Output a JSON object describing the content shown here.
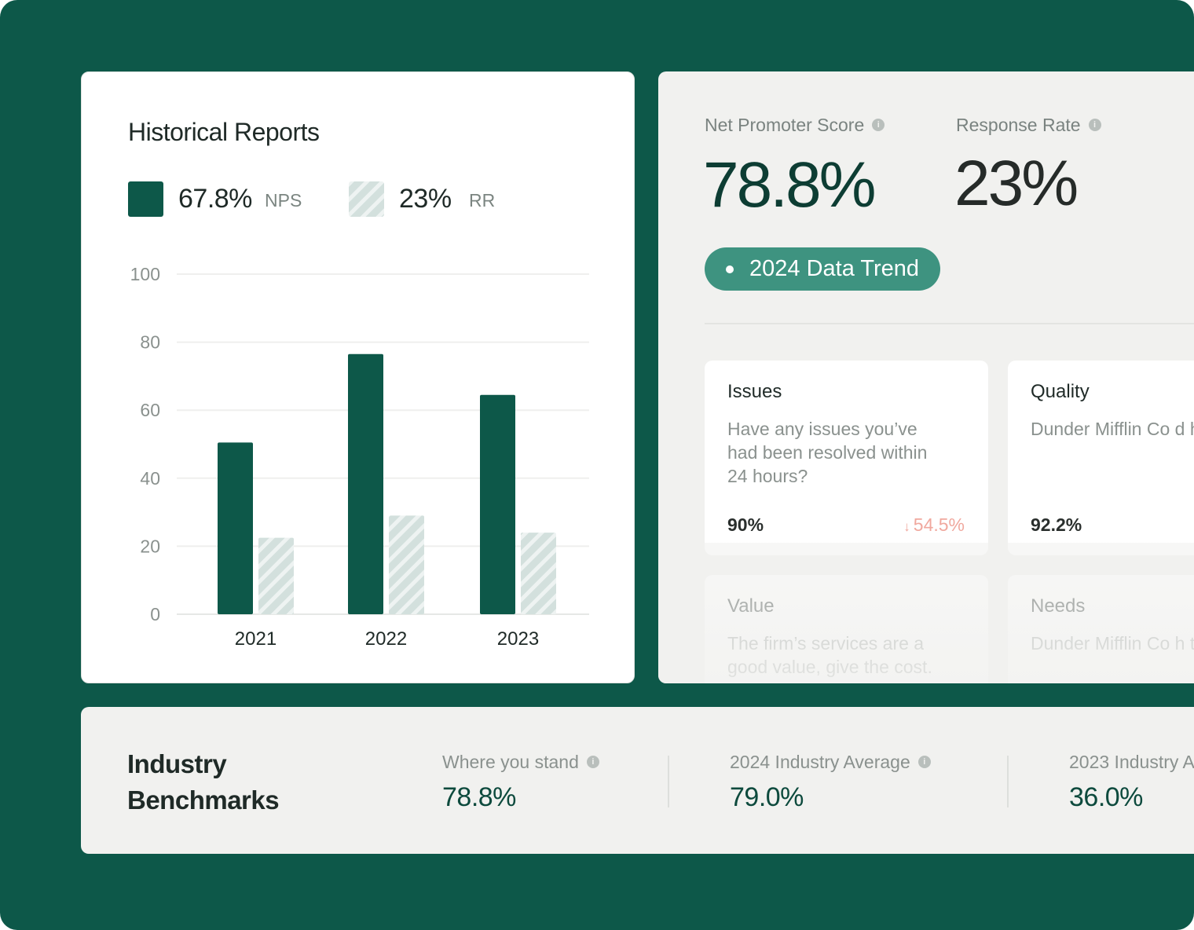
{
  "colors": {
    "brand": "#0d5849",
    "nps_bar": "#0d5849",
    "rr_bar": "#d3e0dd",
    "accent_button": "#3e9380",
    "negative": "#f0a89e"
  },
  "historical": {
    "title": "Historical Reports",
    "legend": [
      {
        "value": "67.8%",
        "label": "NPS"
      },
      {
        "value": "23%",
        "label": "RR"
      }
    ]
  },
  "chart_data": {
    "type": "bar",
    "title": "Historical Reports",
    "categories": [
      "2021",
      "2022",
      "2023"
    ],
    "series": [
      {
        "name": "NPS",
        "values": [
          50.5,
          76.5,
          64.5
        ]
      },
      {
        "name": "RR",
        "values": [
          22.5,
          29,
          24
        ]
      }
    ],
    "ylim": [
      0,
      100
    ],
    "yticks": [
      "0",
      "20",
      "40",
      "60",
      "80",
      "100"
    ],
    "grid": true,
    "legend_position": "top-left"
  },
  "metrics": {
    "nps": {
      "label": "Net Promoter Score",
      "value": "78.8%"
    },
    "rr": {
      "label": "Response Rate",
      "value": "23%"
    },
    "trend_button": "2024 Data Trend",
    "info_icon_glyph": "i"
  },
  "questions": [
    {
      "title": "Issues",
      "text": "Have any issues you’ve\nhad been resolved within\n24 hours?",
      "pct": "90%",
      "delta": "54.5%",
      "delta_icon": "↓"
    },
    {
      "title": "Quality",
      "text": "Dunder Mifflin Co d\nhigh quality, error-fr\nwork.",
      "pct": "92.2%"
    },
    {
      "title": "Value",
      "text": "The firm’s services are a\ngood value, give the cost."
    },
    {
      "title": "Needs",
      "text": "Dunder Mifflin Co h\nthorough understa"
    }
  ],
  "benchmarks": {
    "title_line1": "Industry",
    "title_line2": "Benchmarks",
    "items": [
      {
        "label": "Where you stand",
        "value": "78.8%"
      },
      {
        "label": "2024 Industry Average",
        "value": "79.0%"
      },
      {
        "label": "2023 Industry A",
        "value": "36.0%"
      }
    ]
  }
}
